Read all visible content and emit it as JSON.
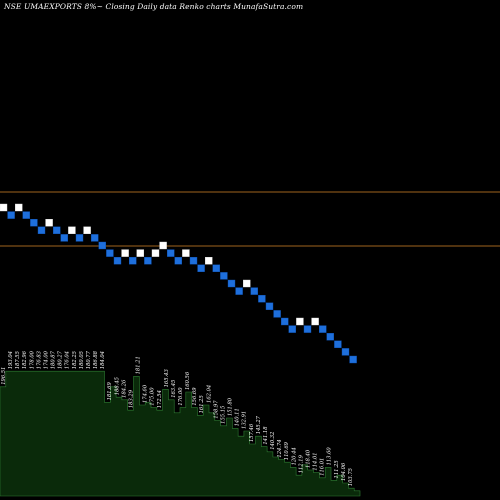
{
  "chart_data": {
    "type": "renko",
    "title": "NSE UMAEXPORTS 8%~  Closing Daily data  Renko  charts MunafaSutra.com",
    "colors": {
      "background": "#000000",
      "up_brick": "#ffffff",
      "down_brick": "#1e6fdc",
      "reference_line": "#a0641e",
      "volume_fill": "#0a2a0a",
      "volume_outline": "#2e7d32",
      "label_text": "#ffffff"
    },
    "reference_lines": [
      {
        "name": "upper",
        "value": 2
      },
      {
        "name": "lower",
        "value": -3
      }
    ],
    "bricks": [
      {
        "level": 0,
        "dir": "up"
      },
      {
        "level": -0.5,
        "dir": "down"
      },
      {
        "level": 0,
        "dir": "up"
      },
      {
        "level": -0.5,
        "dir": "down"
      },
      {
        "level": -1,
        "dir": "down"
      },
      {
        "level": -1.5,
        "dir": "down"
      },
      {
        "level": -1,
        "dir": "up"
      },
      {
        "level": -1.5,
        "dir": "down"
      },
      {
        "level": -2,
        "dir": "down"
      },
      {
        "level": -1.5,
        "dir": "up"
      },
      {
        "level": -2,
        "dir": "down"
      },
      {
        "level": -1.5,
        "dir": "up"
      },
      {
        "level": -2,
        "dir": "down"
      },
      {
        "level": -2.5,
        "dir": "down"
      },
      {
        "level": -3,
        "dir": "down"
      },
      {
        "level": -3.5,
        "dir": "down"
      },
      {
        "level": -3,
        "dir": "up"
      },
      {
        "level": -3.5,
        "dir": "down"
      },
      {
        "level": -3,
        "dir": "up"
      },
      {
        "level": -3.5,
        "dir": "down"
      },
      {
        "level": -3,
        "dir": "up"
      },
      {
        "level": -2.5,
        "dir": "up"
      },
      {
        "level": -3,
        "dir": "down"
      },
      {
        "level": -3.5,
        "dir": "down"
      },
      {
        "level": -3,
        "dir": "up"
      },
      {
        "level": -3.5,
        "dir": "down"
      },
      {
        "level": -4,
        "dir": "down"
      },
      {
        "level": -3.5,
        "dir": "up"
      },
      {
        "level": -4,
        "dir": "down"
      },
      {
        "level": -4.5,
        "dir": "down"
      },
      {
        "level": -5,
        "dir": "down"
      },
      {
        "level": -5.5,
        "dir": "down"
      },
      {
        "level": -5,
        "dir": "up"
      },
      {
        "level": -5.5,
        "dir": "down"
      },
      {
        "level": -6,
        "dir": "down"
      },
      {
        "level": -6.5,
        "dir": "down"
      },
      {
        "level": -7,
        "dir": "down"
      },
      {
        "level": -7.5,
        "dir": "down"
      },
      {
        "level": -8,
        "dir": "down"
      },
      {
        "level": -7.5,
        "dir": "up"
      },
      {
        "level": -8,
        "dir": "down"
      },
      {
        "level": -7.5,
        "dir": "up"
      },
      {
        "level": -8,
        "dir": "down"
      },
      {
        "level": -8.5,
        "dir": "down"
      },
      {
        "level": -9,
        "dir": "down"
      },
      {
        "level": -9.5,
        "dir": "down"
      },
      {
        "level": -10,
        "dir": "down"
      }
    ],
    "volume_bars": [
      0.84,
      0.96,
      0.96,
      0.96,
      0.96,
      0.96,
      0.96,
      0.96,
      0.96,
      0.96,
      0.96,
      0.96,
      0.96,
      0.96,
      0.96,
      0.96,
      0.96,
      0.96,
      0.72,
      0.84,
      0.76,
      0.74,
      0.66,
      0.92,
      0.7,
      0.72,
      0.68,
      0.66,
      0.82,
      0.74,
      0.64,
      0.68,
      0.8,
      0.68,
      0.62,
      0.7,
      0.64,
      0.58,
      0.54,
      0.6,
      0.52,
      0.46,
      0.5,
      0.4,
      0.46,
      0.38,
      0.34,
      0.3,
      0.28,
      0.26,
      0.22,
      0.16,
      0.24,
      0.2,
      0.18,
      0.14,
      0.22,
      0.12,
      0.16,
      0.1,
      0.06,
      0.04
    ],
    "labels": [
      "196.51",
      "193.04",
      "187.55",
      "182.96",
      "178.00",
      "176.83",
      "174.00",
      "180.87",
      "180.27",
      "176.04",
      "182.25",
      "180.05",
      "180.77",
      "186.88",
      "184.04",
      "181.69",
      "188.45",
      "184.26",
      "183.29",
      "181.21",
      "174.60",
      "175.00",
      "172.54",
      "165.43",
      "163.45",
      "176.00",
      "160.56",
      "156.69",
      "161.25",
      "162.04",
      "158.97",
      "155.15",
      "151.80",
      "140.11",
      "132.91",
      "157.46",
      "145.27",
      "141.18",
      "140.32",
      "124.74",
      "110.69",
      "120.44",
      "112.19",
      "118.40",
      "114.01",
      "116.01",
      "113.60",
      "111.25",
      "104.06",
      "103.75"
    ]
  }
}
